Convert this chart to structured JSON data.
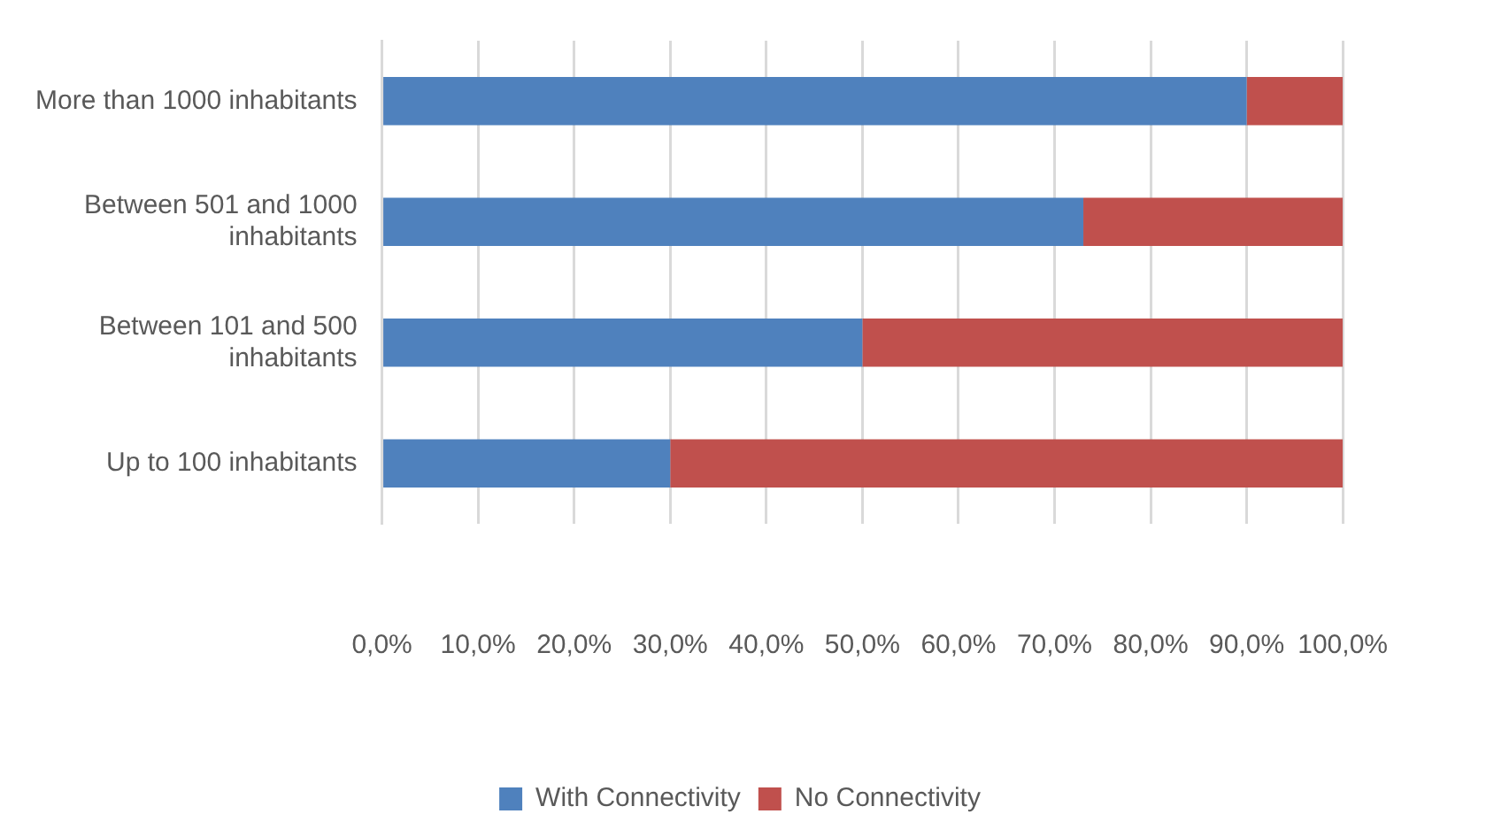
{
  "chart_data": {
    "type": "bar",
    "orientation": "horizontal",
    "stacked": true,
    "categories": [
      "More than 1000 inhabitants",
      "Between 501 and 1000 inhabitants",
      "Between 101 and 500 inhabitants",
      "Up to 100 inhabitants"
    ],
    "series": [
      {
        "name": "With Connectivity",
        "color": "#4f81bd",
        "values": [
          90,
          73,
          50,
          30
        ]
      },
      {
        "name": "No Connectivity",
        "color": "#c0504d",
        "values": [
          10,
          27,
          50,
          70
        ]
      }
    ],
    "xlim": [
      0,
      100
    ],
    "xticks": [
      {
        "value": 0,
        "label": "0,0%"
      },
      {
        "value": 10,
        "label": "10,0%"
      },
      {
        "value": 20,
        "label": "20,0%"
      },
      {
        "value": 30,
        "label": "30,0%"
      },
      {
        "value": 40,
        "label": "40,0%"
      },
      {
        "value": 50,
        "label": "50,0%"
      },
      {
        "value": 60,
        "label": "60,0%"
      },
      {
        "value": 70,
        "label": "70,0%"
      },
      {
        "value": 80,
        "label": "80,0%"
      },
      {
        "value": 90,
        "label": "90,0%"
      },
      {
        "value": 100,
        "label": "100,0%"
      }
    ],
    "grid": "x",
    "legend": "bottom"
  }
}
